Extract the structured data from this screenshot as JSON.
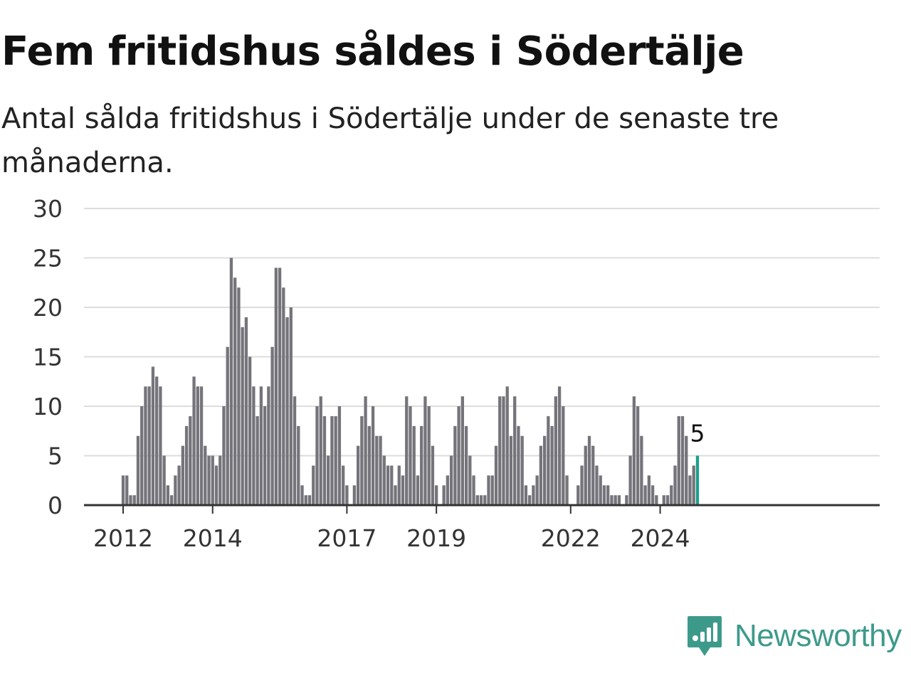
{
  "title": "Fem fritidshus såldes i Södertälje",
  "subtitle": "Antal sålda fritidshus i Södertälje under de senaste tre månaderna.",
  "brand": "Newsworthy",
  "colors": {
    "bar": "#75747b",
    "highlight": "#1e9e8c",
    "grid": "#dddddd",
    "axis": "#333333",
    "brand": "#3d9a8b"
  },
  "chart_data": {
    "type": "bar",
    "title": "Fem fritidshus såldes i Södertälje",
    "subtitle": "Antal sålda fritidshus i Södertälje under de senaste tre månaderna.",
    "xlabel": "",
    "ylabel": "",
    "ylim": [
      0,
      30
    ],
    "yticks": [
      0,
      5,
      10,
      15,
      20,
      25,
      30
    ],
    "xticks": [
      {
        "label": "2012",
        "index": 0
      },
      {
        "label": "2014",
        "index": 24
      },
      {
        "label": "2017",
        "index": 60
      },
      {
        "label": "2019",
        "index": 84
      },
      {
        "label": "2022",
        "index": 120
      },
      {
        "label": "2024",
        "index": 144
      }
    ],
    "grid": true,
    "highlight_label": "5",
    "values": [
      3,
      3,
      1,
      1,
      7,
      10,
      12,
      12,
      14,
      13,
      12,
      5,
      2,
      1,
      3,
      4,
      6,
      8,
      9,
      13,
      12,
      12,
      6,
      5,
      5,
      4,
      5,
      10,
      16,
      25,
      23,
      22,
      18,
      19,
      15,
      12,
      9,
      12,
      10,
      12,
      16,
      24,
      24,
      22,
      19,
      20,
      11,
      8,
      2,
      1,
      1,
      4,
      10,
      11,
      9,
      5,
      9,
      9,
      10,
      4,
      2,
      0,
      2,
      6,
      9,
      11,
      8,
      10,
      7,
      7,
      5,
      4,
      4,
      2,
      4,
      3,
      11,
      10,
      8,
      3,
      8,
      11,
      10,
      6,
      2,
      0,
      2,
      3,
      5,
      8,
      10,
      11,
      8,
      5,
      3,
      1,
      1,
      1,
      3,
      3,
      6,
      11,
      11,
      12,
      7,
      11,
      8,
      7,
      2,
      1,
      2,
      3,
      6,
      7,
      9,
      8,
      11,
      12,
      10,
      3,
      0,
      0,
      2,
      4,
      6,
      7,
      6,
      4,
      3,
      2,
      2,
      1,
      1,
      1,
      0,
      1,
      5,
      11,
      10,
      7,
      2,
      3,
      2,
      1,
      0,
      1,
      1,
      2,
      4,
      9,
      9,
      7,
      3,
      4,
      5
    ]
  }
}
